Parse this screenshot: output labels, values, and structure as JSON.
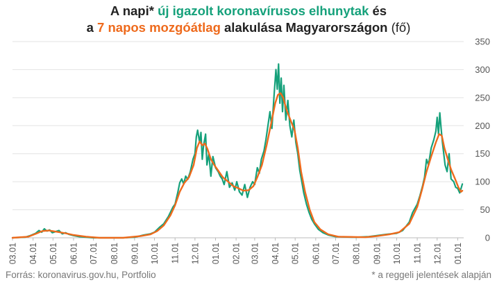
{
  "title": {
    "line1_pre": "A napi* ",
    "line1_green": "új igazolt koronavírusos elhunytak",
    "line1_post": " és",
    "line2_pre": "a ",
    "line2_orange": "7 napos mozgóátlag",
    "line2_bold": " alakulása Magyarországon ",
    "line2_unit": "(fő)"
  },
  "footer": {
    "source": "Forrás: koronavirus.gov.hu, Portfolio",
    "note": "* a reggeli jelentések alapján"
  },
  "colors": {
    "daily": "#16a17b",
    "average": "#ee6a1c",
    "grid": "#e3e3e3",
    "axis_text": "#555555"
  },
  "chart_data": {
    "type": "line",
    "title": "A napi* új igazolt koronavírusos elhunytak és a 7 napos mozgóátlag alakulása Magyarországon (fő)",
    "xlabel": "",
    "ylabel": "",
    "ylim": [
      0,
      350
    ],
    "y_ticks": [
      0,
      50,
      100,
      150,
      200,
      250,
      300,
      350
    ],
    "y_axis_position": "right",
    "grid": true,
    "legend": "none",
    "x_ticks": [
      "03.01",
      "04.01",
      "05.01",
      "06.01",
      "07.01",
      "08.01",
      "09.01",
      "10.01",
      "11.01",
      "12.01",
      "01.01",
      "02.01",
      "03.01",
      "04.01",
      "05.01",
      "06.01",
      "07.01",
      "08.01",
      "09.01",
      "10.01",
      "11.01",
      "12.01",
      "01.01"
    ],
    "x_range": [
      "2020-03-01",
      "2022-01-10"
    ],
    "series": [
      {
        "name": "új igazolt koronavírusos elhunytak",
        "style": "daily",
        "points": [
          [
            "2020-03-01",
            0
          ],
          [
            "2020-03-20",
            1
          ],
          [
            "2020-03-28",
            4
          ],
          [
            "2020-04-05",
            8
          ],
          [
            "2020-04-10",
            13
          ],
          [
            "2020-04-14",
            10
          ],
          [
            "2020-04-18",
            16
          ],
          [
            "2020-04-22",
            12
          ],
          [
            "2020-04-26",
            14
          ],
          [
            "2020-04-30",
            9
          ],
          [
            "2020-05-05",
            11
          ],
          [
            "2020-05-10",
            13
          ],
          [
            "2020-05-15",
            7
          ],
          [
            "2020-05-20",
            9
          ],
          [
            "2020-05-25",
            6
          ],
          [
            "2020-06-01",
            4
          ],
          [
            "2020-06-10",
            2
          ],
          [
            "2020-06-20",
            1
          ],
          [
            "2020-07-01",
            0
          ],
          [
            "2020-08-15",
            0
          ],
          [
            "2020-09-01",
            1
          ],
          [
            "2020-09-15",
            5
          ],
          [
            "2020-09-25",
            7
          ],
          [
            "2020-10-01",
            10
          ],
          [
            "2020-10-08",
            18
          ],
          [
            "2020-10-15",
            25
          ],
          [
            "2020-10-22",
            38
          ],
          [
            "2020-10-29",
            55
          ],
          [
            "2020-11-01",
            60
          ],
          [
            "2020-11-05",
            80
          ],
          [
            "2020-11-08",
            98
          ],
          [
            "2020-11-11",
            105
          ],
          [
            "2020-11-14",
            96
          ],
          [
            "2020-11-17",
            110
          ],
          [
            "2020-11-20",
            104
          ],
          [
            "2020-11-24",
            118
          ],
          [
            "2020-11-28",
            140
          ],
          [
            "2020-12-01",
            150
          ],
          [
            "2020-12-03",
            180
          ],
          [
            "2020-12-05",
            192
          ],
          [
            "2020-12-08",
            170
          ],
          [
            "2020-12-10",
            188
          ],
          [
            "2020-12-12",
            140
          ],
          [
            "2020-12-14",
            165
          ],
          [
            "2020-12-17",
            185
          ],
          [
            "2020-12-19",
            130
          ],
          [
            "2020-12-22",
            150
          ],
          [
            "2020-12-25",
            110
          ],
          [
            "2020-12-28",
            145
          ],
          [
            "2021-01-01",
            125
          ],
          [
            "2021-01-05",
            118
          ],
          [
            "2021-01-08",
            110
          ],
          [
            "2021-01-11",
            105
          ],
          [
            "2021-01-14",
            95
          ],
          [
            "2021-01-18",
            118
          ],
          [
            "2021-01-22",
            90
          ],
          [
            "2021-01-26",
            98
          ],
          [
            "2021-01-30",
            85
          ],
          [
            "2021-02-02",
            100
          ],
          [
            "2021-02-06",
            82
          ],
          [
            "2021-02-10",
            76
          ],
          [
            "2021-02-14",
            95
          ],
          [
            "2021-02-18",
            72
          ],
          [
            "2021-02-22",
            90
          ],
          [
            "2021-02-26",
            100
          ],
          [
            "2021-03-01",
            95
          ],
          [
            "2021-03-05",
            125
          ],
          [
            "2021-03-08",
            115
          ],
          [
            "2021-03-11",
            140
          ],
          [
            "2021-03-15",
            155
          ],
          [
            "2021-03-18",
            175
          ],
          [
            "2021-03-21",
            200
          ],
          [
            "2021-03-24",
            225
          ],
          [
            "2021-03-27",
            195
          ],
          [
            "2021-03-30",
            250
          ],
          [
            "2021-04-02",
            300
          ],
          [
            "2021-04-04",
            265
          ],
          [
            "2021-04-06",
            310
          ],
          [
            "2021-04-08",
            240
          ],
          [
            "2021-04-10",
            285
          ],
          [
            "2021-04-12",
            225
          ],
          [
            "2021-04-14",
            272
          ],
          [
            "2021-04-17",
            210
          ],
          [
            "2021-04-20",
            245
          ],
          [
            "2021-04-23",
            200
          ],
          [
            "2021-04-26",
            180
          ],
          [
            "2021-04-29",
            210
          ],
          [
            "2021-05-02",
            170
          ],
          [
            "2021-05-05",
            150
          ],
          [
            "2021-05-08",
            120
          ],
          [
            "2021-05-11",
            100
          ],
          [
            "2021-05-14",
            80
          ],
          [
            "2021-05-18",
            60
          ],
          [
            "2021-05-22",
            45
          ],
          [
            "2021-05-26",
            33
          ],
          [
            "2021-05-30",
            25
          ],
          [
            "2021-06-05",
            15
          ],
          [
            "2021-06-12",
            9
          ],
          [
            "2021-06-20",
            5
          ],
          [
            "2021-07-01",
            2
          ],
          [
            "2021-08-01",
            1
          ],
          [
            "2021-08-20",
            2
          ],
          [
            "2021-09-01",
            4
          ],
          [
            "2021-09-15",
            6
          ],
          [
            "2021-10-01",
            8
          ],
          [
            "2021-10-10",
            13
          ],
          [
            "2021-10-20",
            28
          ],
          [
            "2021-10-25",
            45
          ],
          [
            "2021-11-01",
            60
          ],
          [
            "2021-11-05",
            75
          ],
          [
            "2021-11-09",
            92
          ],
          [
            "2021-11-12",
            108
          ],
          [
            "2021-11-15",
            140
          ],
          [
            "2021-11-18",
            130
          ],
          [
            "2021-11-22",
            160
          ],
          [
            "2021-11-26",
            175
          ],
          [
            "2021-11-29",
            190
          ],
          [
            "2021-12-01",
            215
          ],
          [
            "2021-12-03",
            185
          ],
          [
            "2021-12-05",
            223
          ],
          [
            "2021-12-07",
            195
          ],
          [
            "2021-12-09",
            170
          ],
          [
            "2021-12-11",
            150
          ],
          [
            "2021-12-13",
            130
          ],
          [
            "2021-12-16",
            118
          ],
          [
            "2021-12-19",
            150
          ],
          [
            "2021-12-22",
            105
          ],
          [
            "2021-12-26",
            100
          ],
          [
            "2021-12-29",
            90
          ],
          [
            "2022-01-01",
            88
          ],
          [
            "2022-01-04",
            80
          ],
          [
            "2022-01-08",
            96
          ]
        ]
      },
      {
        "name": "7 napos mozgóátlag",
        "style": "average",
        "points": [
          [
            "2020-03-01",
            0
          ],
          [
            "2020-03-25",
            2
          ],
          [
            "2020-04-05",
            7
          ],
          [
            "2020-04-15",
            12
          ],
          [
            "2020-04-25",
            13
          ],
          [
            "2020-05-05",
            11
          ],
          [
            "2020-05-20",
            8
          ],
          [
            "2020-06-01",
            5
          ],
          [
            "2020-06-20",
            2
          ],
          [
            "2020-07-10",
            0
          ],
          [
            "2020-08-15",
            0
          ],
          [
            "2020-09-10",
            3
          ],
          [
            "2020-09-25",
            6
          ],
          [
            "2020-10-05",
            12
          ],
          [
            "2020-10-15",
            22
          ],
          [
            "2020-10-25",
            40
          ],
          [
            "2020-11-01",
            58
          ],
          [
            "2020-11-08",
            82
          ],
          [
            "2020-11-15",
            98
          ],
          [
            "2020-11-22",
            108
          ],
          [
            "2020-11-29",
            130
          ],
          [
            "2020-12-04",
            160
          ],
          [
            "2020-12-08",
            172
          ],
          [
            "2020-12-12",
            165
          ],
          [
            "2020-12-16",
            168
          ],
          [
            "2020-12-20",
            158
          ],
          [
            "2020-12-25",
            140
          ],
          [
            "2020-12-30",
            130
          ],
          [
            "2021-01-05",
            120
          ],
          [
            "2021-01-12",
            108
          ],
          [
            "2021-01-20",
            100
          ],
          [
            "2021-01-28",
            92
          ],
          [
            "2021-02-05",
            88
          ],
          [
            "2021-02-12",
            84
          ],
          [
            "2021-02-20",
            85
          ],
          [
            "2021-02-27",
            92
          ],
          [
            "2021-03-05",
            108
          ],
          [
            "2021-03-12",
            130
          ],
          [
            "2021-03-19",
            165
          ],
          [
            "2021-03-26",
            205
          ],
          [
            "2021-04-01",
            240
          ],
          [
            "2021-04-05",
            255
          ],
          [
            "2021-04-09",
            258
          ],
          [
            "2021-04-13",
            250
          ],
          [
            "2021-04-18",
            228
          ],
          [
            "2021-04-24",
            210
          ],
          [
            "2021-04-30",
            192
          ],
          [
            "2021-05-05",
            160
          ],
          [
            "2021-05-10",
            118
          ],
          [
            "2021-05-16",
            82
          ],
          [
            "2021-05-23",
            50
          ],
          [
            "2021-05-30",
            28
          ],
          [
            "2021-06-08",
            15
          ],
          [
            "2021-06-20",
            6
          ],
          [
            "2021-07-05",
            2
          ],
          [
            "2021-08-15",
            1
          ],
          [
            "2021-09-01",
            3
          ],
          [
            "2021-09-20",
            6
          ],
          [
            "2021-10-05",
            10
          ],
          [
            "2021-10-20",
            25
          ],
          [
            "2021-11-01",
            55
          ],
          [
            "2021-11-08",
            85
          ],
          [
            "2021-11-15",
            118
          ],
          [
            "2021-11-22",
            145
          ],
          [
            "2021-11-29",
            170
          ],
          [
            "2021-12-04",
            185
          ],
          [
            "2021-12-08",
            182
          ],
          [
            "2021-12-12",
            160
          ],
          [
            "2021-12-17",
            140
          ],
          [
            "2021-12-22",
            122
          ],
          [
            "2021-12-28",
            105
          ],
          [
            "2022-01-02",
            90
          ],
          [
            "2022-01-06",
            82
          ],
          [
            "2022-01-08",
            84
          ]
        ]
      }
    ]
  }
}
